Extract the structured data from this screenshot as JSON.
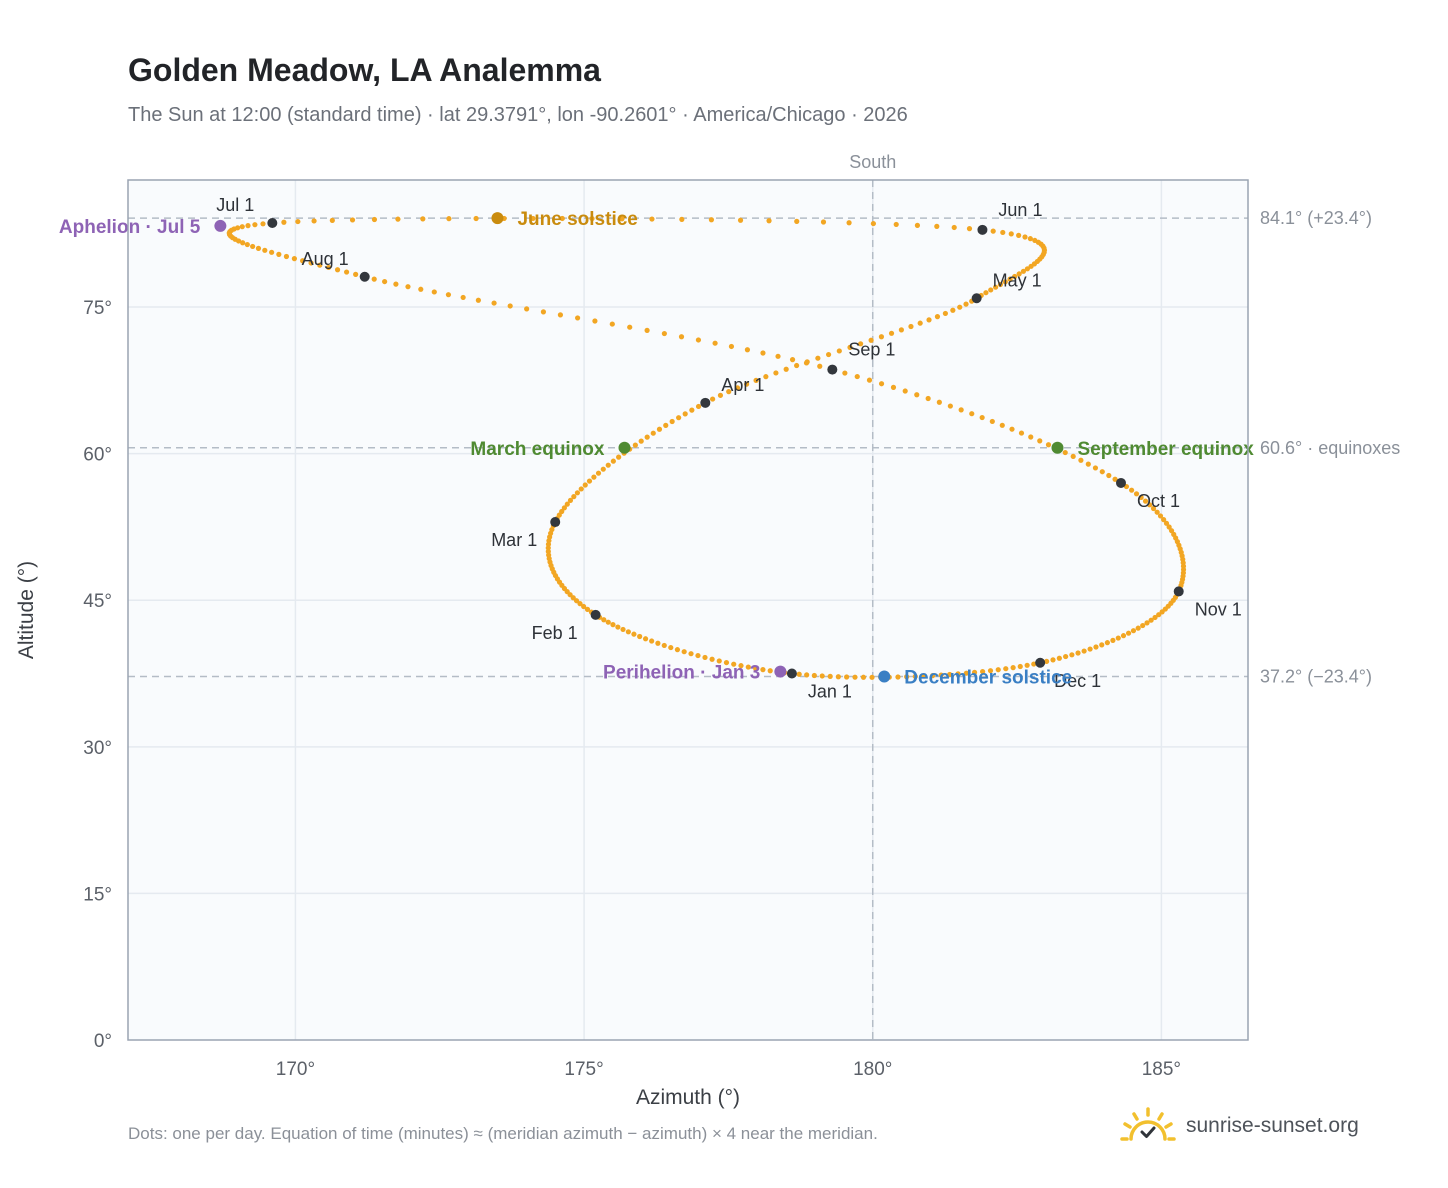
{
  "header": {
    "title": "Golden Meadow, LA Analemma",
    "subtitle": "The Sun at 12:00 (standard time) · lat 29.3791°, lon -90.2601° · America/Chicago · 2026"
  },
  "footer": {
    "note": "Dots: one per day. Equation of time (minutes) ≈ (meridian azimuth − azimuth) × 4 near the meridian.",
    "brand": "sunrise-sunset.org",
    "brand_icon": "sunrise-logo-icon"
  },
  "colors": {
    "trace": "#f2a623",
    "month_marker": "#33373d",
    "solstice_june": "#c98b0e",
    "solstice_december": "#3a7fc4",
    "equinox": "#4f8a32",
    "apsis": "#8e63b5",
    "plot_bg": "#f9fbfd",
    "grid": "#e5eaf0",
    "frame": "#9aa4b2",
    "reference": "#b4bcc6"
  },
  "chart_data": {
    "type": "scatter",
    "xlabel": "Azimuth (°)",
    "ylabel": "Altitude (°)",
    "xlim": [
      167.1,
      186.5
    ],
    "ylim": [
      0,
      88
    ],
    "xticks": [
      {
        "value": 170,
        "label": "170°"
      },
      {
        "value": 175,
        "label": "175°"
      },
      {
        "value": 180,
        "label": "180°"
      },
      {
        "value": 185,
        "label": "185°"
      }
    ],
    "yticks": [
      {
        "value": 0,
        "label": "0°"
      },
      {
        "value": 15,
        "label": "15°"
      },
      {
        "value": 30,
        "label": "30°"
      },
      {
        "value": 45,
        "label": "45°"
      },
      {
        "value": 60,
        "label": "60°"
      },
      {
        "value": 75,
        "label": "75°"
      }
    ],
    "grid": true,
    "meridian": {
      "azimuth": 180,
      "label": "South"
    },
    "reference_lines": [
      {
        "altitude": 84.1,
        "label": "84.1° (+23.4°)"
      },
      {
        "altitude": 60.6,
        "label": "60.6° · equinoxes"
      },
      {
        "altitude": 37.2,
        "label": "37.2° (−23.4°)"
      }
    ],
    "trace_keypoints": [
      {
        "date": "Jan 1",
        "azimuth": 178.6,
        "altitude": 37.5
      },
      {
        "date": "Feb 1",
        "azimuth": 175.2,
        "altitude": 43.5
      },
      {
        "date": "Mar 1",
        "azimuth": 174.5,
        "altitude": 53.0
      },
      {
        "date": "Apr 1",
        "azimuth": 177.1,
        "altitude": 65.2
      },
      {
        "date": "May 1",
        "azimuth": 181.8,
        "altitude": 75.9
      },
      {
        "date": "Jun 1",
        "azimuth": 181.9,
        "altitude": 82.9
      },
      {
        "date": "Jul 1",
        "azimuth": 169.6,
        "altitude": 83.6
      },
      {
        "date": "Aug 1",
        "azimuth": 171.2,
        "altitude": 78.1
      },
      {
        "date": "Sep 1",
        "azimuth": 179.3,
        "altitude": 68.6
      },
      {
        "date": "Oct 1",
        "azimuth": 184.3,
        "altitude": 57.0
      },
      {
        "date": "Nov 1",
        "azimuth": 185.3,
        "altitude": 45.9
      },
      {
        "date": "Dec 1",
        "azimuth": 182.9,
        "altitude": 38.6
      }
    ],
    "month_markers": [
      {
        "label": "Jan 1",
        "azimuth": 178.6,
        "altitude": 37.5
      },
      {
        "label": "Feb 1",
        "azimuth": 175.2,
        "altitude": 43.5
      },
      {
        "label": "Mar 1",
        "azimuth": 174.5,
        "altitude": 53.0
      },
      {
        "label": "Apr 1",
        "azimuth": 177.1,
        "altitude": 65.2
      },
      {
        "label": "May 1",
        "azimuth": 181.8,
        "altitude": 75.9
      },
      {
        "label": "Jun 1",
        "azimuth": 181.9,
        "altitude": 82.9
      },
      {
        "label": "Jul 1",
        "azimuth": 169.6,
        "altitude": 83.6
      },
      {
        "label": "Aug 1",
        "azimuth": 171.2,
        "altitude": 78.1
      },
      {
        "label": "Sep 1",
        "azimuth": 179.3,
        "altitude": 68.6
      },
      {
        "label": "Oct 1",
        "azimuth": 184.3,
        "altitude": 57.0
      },
      {
        "label": "Nov 1",
        "azimuth": 185.3,
        "altitude": 45.9
      },
      {
        "label": "Dec 1",
        "azimuth": 182.9,
        "altitude": 38.6
      }
    ],
    "events": [
      {
        "label": "June solstice",
        "azimuth": 173.5,
        "altitude": 84.1,
        "color": "#c98b0e",
        "anchor": "right"
      },
      {
        "label": "December solstice",
        "azimuth": 180.2,
        "altitude": 37.2,
        "color": "#3a7fc4",
        "anchor": "right"
      },
      {
        "label": "March equinox",
        "azimuth": 175.7,
        "altitude": 60.6,
        "color": "#4f8a32",
        "anchor": "left"
      },
      {
        "label": "September equinox",
        "azimuth": 183.2,
        "altitude": 60.6,
        "color": "#4f8a32",
        "anchor": "right"
      },
      {
        "label": "Aphelion · Jul 5",
        "azimuth": 168.7,
        "altitude": 83.3,
        "color": "#8e63b5",
        "anchor": "left"
      },
      {
        "label": "Perihelion · Jan 3",
        "azimuth": 178.4,
        "altitude": 37.7,
        "color": "#8e63b5",
        "anchor": "left"
      }
    ]
  }
}
